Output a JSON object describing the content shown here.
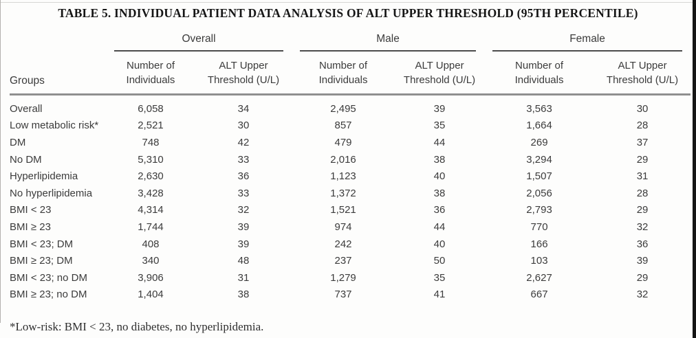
{
  "title": "TABLE 5. INDIVIDUAL PATIENT DATA ANALYSIS OF ALT UPPER THRESHOLD (95TH PERCENTILE)",
  "table": {
    "row_header_label": "Groups",
    "group_headers": [
      "Overall",
      "Male",
      "Female"
    ],
    "sub_headers": {
      "n": "Number of\nIndividuals",
      "alt": "ALT Upper\nThreshold (U/L)"
    },
    "rows": [
      {
        "group": "Overall",
        "overall_n": "6,058",
        "overall_alt": "34",
        "male_n": "2,495",
        "male_alt": "39",
        "female_n": "3,563",
        "female_alt": "30"
      },
      {
        "group": "Low metabolic risk*",
        "overall_n": "2,521",
        "overall_alt": "30",
        "male_n": "857",
        "male_alt": "35",
        "female_n": "1,664",
        "female_alt": "28"
      },
      {
        "group": "DM",
        "overall_n": "748",
        "overall_alt": "42",
        "male_n": "479",
        "male_alt": "44",
        "female_n": "269",
        "female_alt": "37"
      },
      {
        "group": "No DM",
        "overall_n": "5,310",
        "overall_alt": "33",
        "male_n": "2,016",
        "male_alt": "38",
        "female_n": "3,294",
        "female_alt": "29"
      },
      {
        "group": "Hyperlipidemia",
        "overall_n": "2,630",
        "overall_alt": "36",
        "male_n": "1,123",
        "male_alt": "40",
        "female_n": "1,507",
        "female_alt": "31"
      },
      {
        "group": "No hyperlipidemia",
        "overall_n": "3,428",
        "overall_alt": "33",
        "male_n": "1,372",
        "male_alt": "38",
        "female_n": "2,056",
        "female_alt": "28"
      },
      {
        "group": "BMI < 23",
        "overall_n": "4,314",
        "overall_alt": "32",
        "male_n": "1,521",
        "male_alt": "36",
        "female_n": "2,793",
        "female_alt": "29"
      },
      {
        "group": "BMI ≥ 23",
        "overall_n": "1,744",
        "overall_alt": "39",
        "male_n": "974",
        "male_alt": "44",
        "female_n": "770",
        "female_alt": "32"
      },
      {
        "group": "BMI < 23; DM",
        "overall_n": "408",
        "overall_alt": "39",
        "male_n": "242",
        "male_alt": "40",
        "female_n": "166",
        "female_alt": "36"
      },
      {
        "group": "BMI ≥ 23; DM",
        "overall_n": "340",
        "overall_alt": "48",
        "male_n": "237",
        "male_alt": "50",
        "female_n": "103",
        "female_alt": "39"
      },
      {
        "group": "BMI < 23; no DM",
        "overall_n": "3,906",
        "overall_alt": "31",
        "male_n": "1,279",
        "male_alt": "35",
        "female_n": "2,627",
        "female_alt": "29"
      },
      {
        "group": "BMI ≥ 23; no DM",
        "overall_n": "1,404",
        "overall_alt": "38",
        "male_n": "737",
        "male_alt": "41",
        "female_n": "667",
        "female_alt": "32"
      }
    ]
  },
  "footnote": "*Low-risk: BMI < 23, no diabetes, no hyperlipidemia.",
  "colors": {
    "text": "#3b3b3b",
    "title_text": "#161616",
    "group_rule": "#4b4b4b",
    "header_rule": "#8f8f8f",
    "scan_edge": "#151515"
  }
}
